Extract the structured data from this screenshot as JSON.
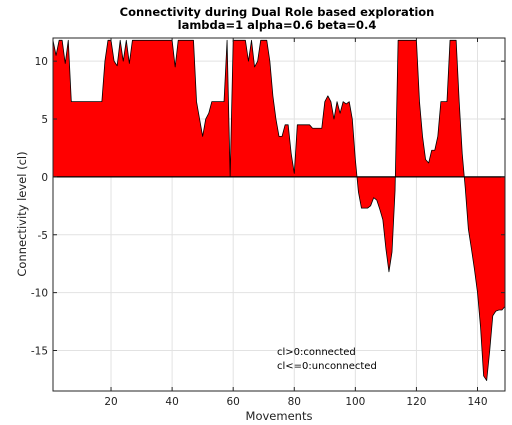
{
  "chart_data": {
    "type": "area",
    "title": "Connectivity during Dual Role based exploration",
    "subtitle": "lambda=1 alpha=0.6 beta=0.4",
    "xlabel": "Movements",
    "ylabel": "Connectivity level (cl)",
    "xlim": [
      1,
      149
    ],
    "ylim": [
      -18.5,
      12
    ],
    "xticks": [
      20,
      40,
      60,
      80,
      100,
      120,
      140
    ],
    "yticks": [
      -15,
      -10,
      -5,
      0,
      5,
      10
    ],
    "grid": true,
    "fill_color": "#ff0000",
    "edge_color": "#000000",
    "annotations": [
      "cl>0:connected",
      "cl<=0:unconnected"
    ],
    "series": [
      {
        "x": [
          1,
          2,
          3,
          4,
          5,
          6,
          7,
          8,
          9,
          10,
          11,
          12,
          13,
          14,
          15,
          16,
          17,
          18,
          19,
          20,
          21,
          22,
          23,
          24,
          25,
          26,
          27,
          28,
          29,
          30,
          31,
          32,
          33,
          34,
          35,
          36,
          37,
          38,
          39,
          40,
          41,
          42,
          43,
          44,
          45,
          46,
          47,
          48,
          49,
          50,
          51,
          52,
          53,
          54,
          55,
          56,
          57,
          58,
          59,
          60,
          61,
          62,
          63,
          64,
          65,
          66,
          67,
          68,
          69,
          70,
          71,
          72,
          73,
          74,
          75,
          76,
          77,
          78,
          79,
          80,
          81,
          82,
          83,
          84,
          85,
          86,
          87,
          88,
          89,
          90,
          91,
          92,
          93,
          94,
          95,
          96,
          97,
          98,
          99,
          100,
          101,
          102,
          103,
          104,
          105,
          106,
          107,
          108,
          109,
          110,
          111,
          112,
          113,
          114,
          115,
          116,
          117,
          118,
          119,
          120,
          121,
          122,
          123,
          124,
          125,
          126,
          127,
          128,
          129,
          130,
          131,
          132,
          133,
          134,
          135,
          136,
          137,
          138,
          139,
          140,
          141,
          142,
          143,
          144,
          145,
          146,
          147,
          148,
          149
        ],
        "y": [
          11.8,
          10.5,
          11.8,
          11.8,
          9.8,
          11.8,
          6.5,
          6.5,
          6.5,
          6.5,
          6.5,
          6.5,
          6.5,
          6.5,
          6.5,
          6.5,
          6.5,
          10,
          11.8,
          11.8,
          10,
          9.6,
          11.8,
          10,
          11.8,
          9.8,
          11.8,
          11.8,
          11.8,
          11.8,
          11.8,
          11.8,
          11.8,
          11.8,
          11.8,
          11.8,
          11.8,
          11.8,
          11.8,
          11.8,
          9.5,
          11.8,
          11.8,
          11.8,
          11.8,
          11.8,
          11.8,
          6.5,
          5,
          3.5,
          5,
          5.5,
          6.5,
          6.5,
          6.5,
          6.5,
          6.5,
          11.8,
          0,
          11.8,
          11.8,
          11.8,
          11.8,
          11.8,
          10,
          11.8,
          9.5,
          10,
          11.8,
          11.8,
          11.8,
          10,
          7,
          5,
          3.5,
          3.5,
          4.5,
          4.5,
          2,
          0.3,
          4.5,
          4.5,
          4.5,
          4.5,
          4.5,
          4.2,
          4.2,
          4.2,
          4.2,
          6.5,
          7,
          6.5,
          5,
          6.5,
          5.5,
          6.5,
          6.3,
          6.5,
          5,
          1.5,
          -1.3,
          -2.7,
          -2.7,
          -2.7,
          -2.5,
          -1.8,
          -2,
          -2.8,
          -3.7,
          -6.2,
          -8.2,
          -6.5,
          -1.2,
          11.8,
          11.8,
          11.8,
          11.8,
          11.8,
          11.8,
          11.8,
          6.5,
          3.5,
          1.5,
          1.2,
          2.3,
          2.3,
          3.5,
          6.5,
          6.5,
          6.5,
          11.8,
          11.8,
          11.8,
          6.5,
          2,
          -1,
          -4.5,
          -6.2,
          -8,
          -10,
          -13,
          -17.2,
          -17.6,
          -15,
          -12,
          -11.6,
          -11.5,
          -11.5,
          -11.2
        ]
      }
    ]
  }
}
